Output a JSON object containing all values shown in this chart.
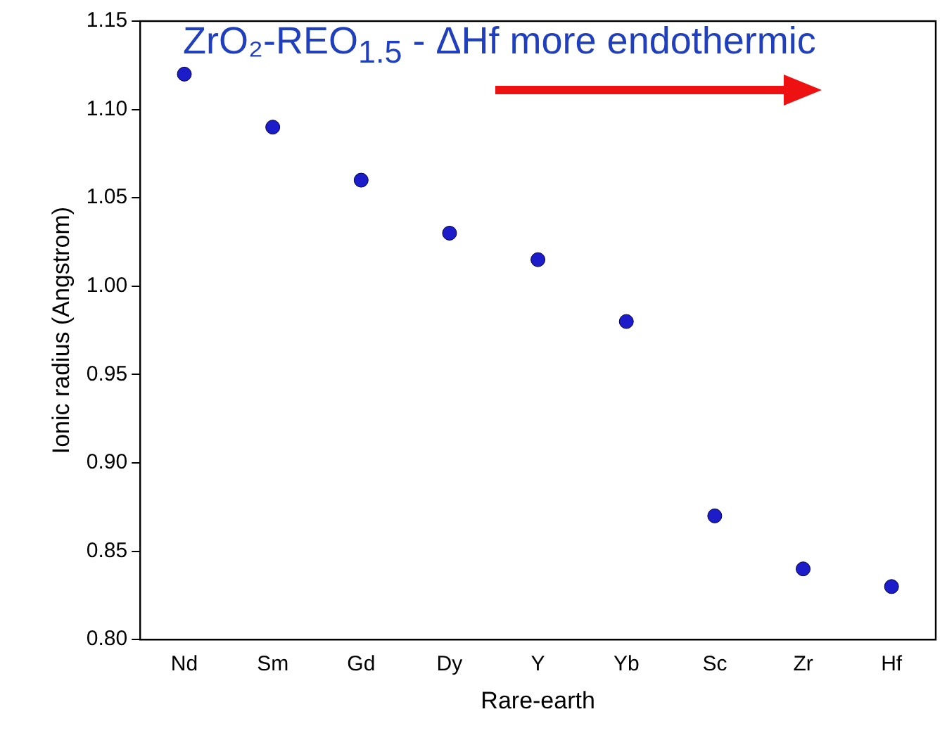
{
  "chart_data": {
    "type": "scatter",
    "title": "ZrO₂-REO$_{1.5}$ - ΔHf more endothermic",
    "xlabel": "Rare-earth",
    "ylabel": "Ionic radius (Angstrom)",
    "categories": [
      "Nd",
      "Sm",
      "Gd",
      "Dy",
      "Y",
      "Yb",
      "Sc",
      "Zr",
      "Hf"
    ],
    "series": [
      {
        "color": "#1c1cc8",
        "values": [
          1.12,
          1.09,
          1.06,
          1.03,
          1.015,
          0.98,
          0.87,
          0.84,
          0.83
        ]
      }
    ],
    "ylim": [
      0.8,
      1.15
    ],
    "yticks": [
      {
        "value": 0.8,
        "label": "0.80"
      },
      0.85,
      {
        "value": 0.9,
        "label": "0.90"
      },
      0.95,
      {
        "value": 1.0,
        "label": "1.00"
      },
      1.05,
      {
        "value": 1.1,
        "label": "1.10"
      },
      1.15
    ],
    "grid": false,
    "legend": false,
    "marker": "circle"
  }
}
